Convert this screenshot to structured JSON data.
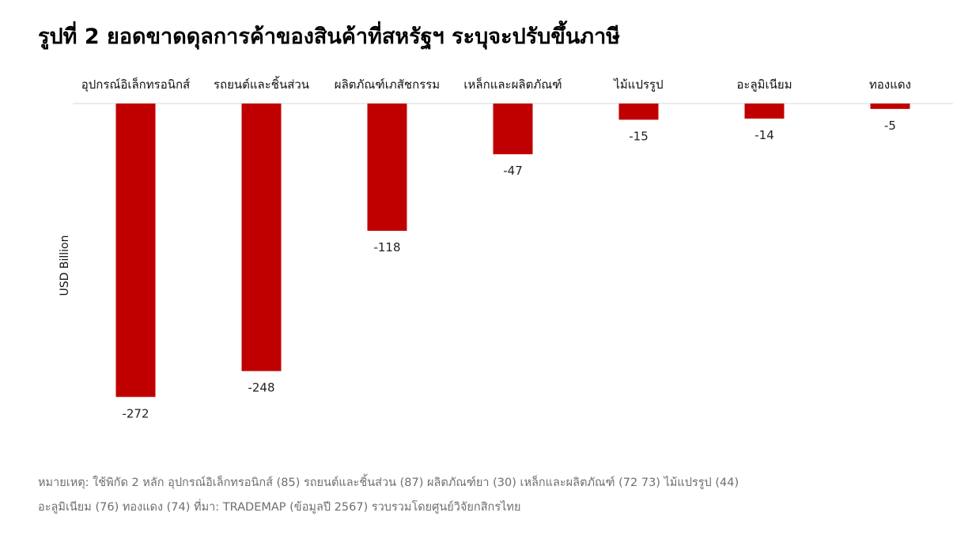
{
  "title": "รูปที่ 2 ยอดขาดดุลการค้าของสินค้าที่สหรัฐฯ ระบุจะปรับขึ้นภาษี",
  "chart_data": {
    "type": "bar",
    "categories": [
      "อุปกรณ์อิเล็กทรอนิกส์",
      "รถยนต์และชิ้นส่วน",
      "ผลิตภัณฑ์เภสัชกรรม",
      "เหล็กและผลิตภัณฑ์",
      "ไม้แปรรูป",
      "อะลูมิเนียม",
      "ทองแดง"
    ],
    "values": [
      -272,
      -248,
      -118,
      -47,
      -15,
      -14,
      -5
    ],
    "ylabel": "USD Billion",
    "xlabel": "",
    "ylim": [
      -290,
      0
    ],
    "bar_color": "#c00000",
    "grid": false,
    "category_axis_position": "top"
  },
  "note": {
    "line1": "หมายเหตุ: ใช้พิกัด 2 หลัก อุปกรณ์อิเล็กทรอนิกส์ (85) รถยนต์และชิ้นส่วน (87) ผลิตภัณฑ์ยา (30) เหล็กและผลิตภัณฑ์ (72 73) ไม้แปรรูป (44)",
    "line2": "อะลูมิเนียม (76) ทองแดง (74) ที่มา: TRADEMAP (ข้อมูลปี 2567) รวบรวมโดยศูนย์วิจัยกสิกรไทย"
  }
}
